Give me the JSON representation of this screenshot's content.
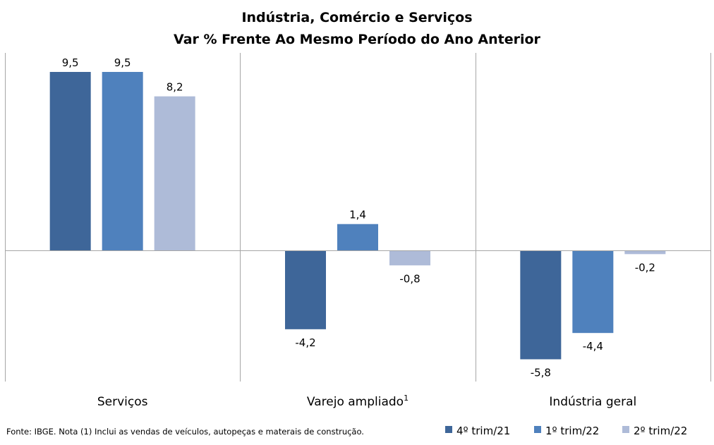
{
  "chart_data": {
    "type": "bar",
    "title_line1": "Indústria, Comércio e Serviços",
    "title_line2": "Var % Frente Ao Mesmo Período do Ano Anterior",
    "categories": [
      "Serviços",
      "Varejo ampliado",
      "Indústria geral"
    ],
    "category_superscripts": [
      "",
      "1",
      ""
    ],
    "series": [
      {
        "name": "4º trim/21",
        "values": [
          9.5,
          -4.2,
          -5.8
        ],
        "labels": [
          "9,5",
          "-4,2",
          "-5,8"
        ],
        "color": "#3e6699"
      },
      {
        "name": "1º trim/22",
        "values": [
          9.5,
          1.4,
          -4.4
        ],
        "labels": [
          "9,5",
          "1,4",
          "-4,4"
        ],
        "color": "#4f81bd"
      },
      {
        "name": "2º trim/22",
        "values": [
          8.2,
          -0.8,
          -0.2
        ],
        "labels": [
          "8,2",
          "-0,8",
          "-0,2"
        ],
        "color": "#aebbd8"
      }
    ],
    "ylim": [
      -6.7,
      10.6
    ],
    "grid": false,
    "category_separators": true,
    "zero_line": true,
    "legend_position": "bottom-right",
    "footnote": "Fonte: IBGE. Nota (1) Inclui as vendas de veículos, autopeças e materais de construção."
  },
  "colors": {
    "axis_line": "#a6a6a6",
    "separator_line": "#a6a6a6",
    "text": "#000000"
  }
}
